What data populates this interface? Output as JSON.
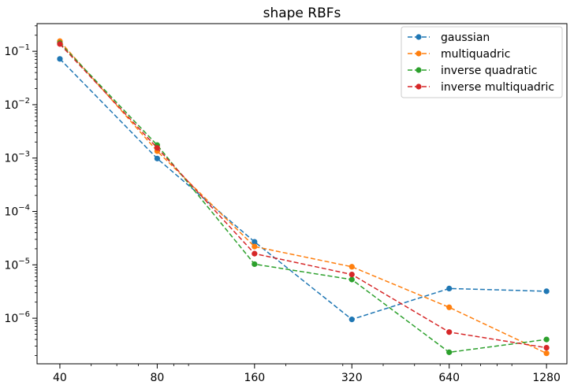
{
  "chart_data": {
    "type": "line",
    "title": "shape RBFs",
    "xlabel": "",
    "ylabel": "",
    "x_scale": "log",
    "y_scale": "log",
    "x_ticks": [
      40,
      80,
      160,
      320,
      640,
      1280
    ],
    "x_tick_labels": [
      "40",
      "80",
      "160",
      "320",
      "640",
      "1280"
    ],
    "y_ticks": [
      1e-06,
      1e-05,
      0.0001,
      0.001,
      0.01,
      0.1
    ],
    "y_tick_labels": [
      {
        "base": "10",
        "exp": "−6"
      },
      {
        "base": "10",
        "exp": "−5"
      },
      {
        "base": "10",
        "exp": "−4"
      },
      {
        "base": "10",
        "exp": "−3"
      },
      {
        "base": "10",
        "exp": "−2"
      },
      {
        "base": "10",
        "exp": "−1"
      }
    ],
    "xlim": [
      34,
      1480
    ],
    "ylim": [
      1.4e-07,
      0.33
    ],
    "grid": false,
    "legend_position": "top-right",
    "line_style": "dashed",
    "marker": "circle",
    "x": [
      40,
      80,
      160,
      320,
      640,
      1280
    ],
    "series": [
      {
        "name": "gaussian",
        "color": "#1f77b4",
        "values": [
          0.072,
          0.00098,
          2.7e-05,
          9.5e-07,
          3.6e-06,
          3.2e-06
        ]
      },
      {
        "name": "multiquadric",
        "color": "#ff7f0e",
        "values": [
          0.155,
          0.00135,
          2.2e-05,
          9.2e-06,
          1.6e-06,
          2.2e-07
        ]
      },
      {
        "name": "inverse quadratic",
        "color": "#2ca02c",
        "values": [
          0.143,
          0.00175,
          1.03e-05,
          5.3e-06,
          2.3e-07,
          4e-07
        ]
      },
      {
        "name": "inverse multiquadric",
        "color": "#d62728",
        "values": [
          0.137,
          0.00155,
          1.62e-05,
          6.6e-06,
          5.5e-07,
          2.8e-07
        ]
      }
    ]
  }
}
